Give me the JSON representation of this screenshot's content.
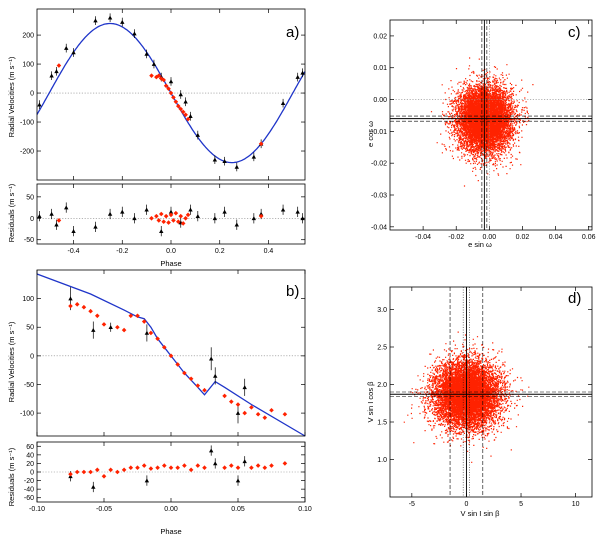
{
  "colors": {
    "model": "#1f35c9",
    "red": "#ff2200",
    "black": "#000000"
  },
  "chart_data": [
    {
      "type": "scatter",
      "panel": "a)",
      "xlabel": "Phase",
      "ylabel_top": "Radial Velocities (m s⁻¹)",
      "ylabel_bottom": "Residuals (m s⁻¹)",
      "xlim": [
        -0.55,
        0.55
      ],
      "ylim_top": [
        -300,
        290
      ],
      "ylim_bottom": [
        -60,
        80
      ],
      "xticks": [
        -0.4,
        -0.2,
        0.0,
        0.2,
        0.4
      ],
      "xtick_labels": [
        "-0.4",
        "-0.2",
        "0.0",
        "0.2",
        "0.4"
      ],
      "yticks_top": [
        -200,
        -100,
        0,
        100,
        200
      ],
      "ytick_labels_top": [
        "-200",
        "-100",
        "0",
        "100",
        "200"
      ],
      "yticks_bottom": [
        -50,
        0,
        50
      ],
      "ytick_labels_bottom": [
        "-50",
        "0",
        "50"
      ],
      "model_amplitude": 240,
      "black_series": [
        [
          -0.54,
          -40,
          15
        ],
        [
          -0.49,
          60,
          15
        ],
        [
          -0.47,
          75,
          15
        ],
        [
          -0.43,
          155,
          15
        ],
        [
          -0.4,
          140,
          15
        ],
        [
          -0.31,
          250,
          15
        ],
        [
          -0.25,
          260,
          15
        ],
        [
          -0.2,
          245,
          15
        ],
        [
          -0.15,
          205,
          15
        ],
        [
          -0.1,
          135,
          15
        ],
        [
          -0.07,
          100,
          15
        ],
        [
          -0.04,
          55,
          15
        ],
        [
          0.0,
          40,
          15
        ],
        [
          0.04,
          -5,
          15
        ],
        [
          0.06,
          -30,
          15
        ],
        [
          0.08,
          -80,
          15
        ],
        [
          0.11,
          -145,
          15
        ],
        [
          0.18,
          -230,
          15
        ],
        [
          0.22,
          -235,
          15
        ],
        [
          0.27,
          -255,
          15
        ],
        [
          0.34,
          -220,
          15
        ],
        [
          0.37,
          -175,
          15
        ],
        [
          0.46,
          -35,
          15
        ],
        [
          0.52,
          55,
          15
        ],
        [
          0.54,
          70,
          15
        ]
      ],
      "red_series": [
        [
          -0.46,
          95
        ],
        [
          -0.08,
          60
        ],
        [
          -0.06,
          55
        ],
        [
          -0.05,
          60
        ],
        [
          -0.04,
          50
        ],
        [
          -0.03,
          45
        ],
        [
          -0.02,
          25
        ],
        [
          -0.01,
          15
        ],
        [
          0.0,
          0
        ],
        [
          0.01,
          -15
        ],
        [
          0.02,
          -30
        ],
        [
          0.03,
          -45
        ],
        [
          0.04,
          -55
        ],
        [
          0.05,
          -65
        ],
        [
          0.06,
          -75
        ],
        [
          0.07,
          -90
        ],
        [
          0.37,
          -175
        ]
      ],
      "black_residuals": [
        [
          -0.54,
          5
        ],
        [
          -0.49,
          10
        ],
        [
          -0.47,
          -15
        ],
        [
          -0.43,
          25
        ],
        [
          -0.4,
          -30
        ],
        [
          -0.31,
          -20
        ],
        [
          -0.25,
          10
        ],
        [
          -0.2,
          15
        ],
        [
          -0.15,
          0
        ],
        [
          -0.1,
          20
        ],
        [
          -0.04,
          -30
        ],
        [
          0.0,
          15
        ],
        [
          0.04,
          -10
        ],
        [
          0.08,
          20
        ],
        [
          0.11,
          5
        ],
        [
          0.18,
          0
        ],
        [
          0.22,
          15
        ],
        [
          0.27,
          -15
        ],
        [
          0.34,
          0
        ],
        [
          0.37,
          10
        ],
        [
          0.46,
          20
        ],
        [
          0.52,
          15
        ],
        [
          0.54,
          0
        ]
      ],
      "red_residuals": [
        [
          -0.46,
          -5
        ],
        [
          -0.08,
          0
        ],
        [
          -0.06,
          5
        ],
        [
          -0.05,
          -5
        ],
        [
          -0.04,
          10
        ],
        [
          -0.03,
          -8
        ],
        [
          -0.02,
          5
        ],
        [
          -0.01,
          -10
        ],
        [
          0.0,
          8
        ],
        [
          0.01,
          -5
        ],
        [
          0.02,
          12
        ],
        [
          0.03,
          -8
        ],
        [
          0.04,
          5
        ],
        [
          0.05,
          -12
        ],
        [
          0.06,
          0
        ],
        [
          0.07,
          8
        ],
        [
          0.37,
          5
        ]
      ]
    },
    {
      "type": "scatter",
      "panel": "b)",
      "xlabel": "Phase",
      "ylabel_top": "Radial Velocities (m s⁻¹)",
      "ylabel_bottom": "Residuals (m s⁻¹)",
      "xlim": [
        -0.1,
        0.1
      ],
      "ylim_top": [
        -140,
        150
      ],
      "ylim_bottom": [
        -70,
        70
      ],
      "xticks": [
        -0.1,
        -0.05,
        0.0,
        0.05,
        0.1
      ],
      "xtick_labels": [
        "-0.10",
        "-0.05",
        "0.00",
        "0.05",
        "0.10"
      ],
      "yticks_top": [
        -100,
        -50,
        0,
        50,
        100
      ],
      "ytick_labels_top": [
        "-100",
        "-50",
        "0",
        "50",
        "100"
      ],
      "yticks_bottom": [
        -60,
        -40,
        -20,
        0,
        20,
        40,
        60
      ],
      "ytick_labels_bottom": [
        "-60",
        "-40",
        "-20",
        "0",
        "20",
        "40",
        "60"
      ],
      "model": [
        [
          -0.1,
          143
        ],
        [
          -0.06,
          108
        ],
        [
          -0.035,
          80
        ],
        [
          -0.025,
          68
        ],
        [
          -0.02,
          65
        ],
        [
          -0.015,
          50
        ],
        [
          -0.01,
          30
        ],
        [
          0.0,
          0
        ],
        [
          0.01,
          -30
        ],
        [
          0.02,
          -55
        ],
        [
          0.025,
          -68
        ],
        [
          0.033,
          -45
        ],
        [
          0.04,
          -55
        ],
        [
          0.06,
          -85
        ],
        [
          0.1,
          -140
        ]
      ],
      "black_series": [
        [
          -0.075,
          100,
          20
        ],
        [
          -0.058,
          45,
          15
        ],
        [
          -0.045,
          50,
          8
        ],
        [
          -0.018,
          40,
          15
        ],
        [
          0.03,
          -5,
          20
        ],
        [
          0.033,
          -35,
          15
        ],
        [
          0.05,
          -100,
          18
        ],
        [
          0.055,
          -55,
          15
        ]
      ],
      "red_series": [
        [
          -0.075,
          87
        ],
        [
          -0.07,
          90
        ],
        [
          -0.065,
          85
        ],
        [
          -0.06,
          78
        ],
        [
          -0.055,
          70
        ],
        [
          -0.05,
          55
        ],
        [
          -0.04,
          50
        ],
        [
          -0.035,
          45
        ],
        [
          -0.03,
          70
        ],
        [
          -0.025,
          70
        ],
        [
          -0.02,
          60
        ],
        [
          -0.015,
          40
        ],
        [
          -0.01,
          30
        ],
        [
          -0.005,
          15
        ],
        [
          0.0,
          0
        ],
        [
          0.005,
          -15
        ],
        [
          0.01,
          -30
        ],
        [
          0.015,
          -40
        ],
        [
          0.02,
          -52
        ],
        [
          0.025,
          -60
        ],
        [
          0.04,
          -70
        ],
        [
          0.045,
          -80
        ],
        [
          0.05,
          -85
        ],
        [
          0.055,
          -100
        ],
        [
          0.06,
          -90
        ],
        [
          0.065,
          -102
        ],
        [
          0.07,
          -108
        ],
        [
          0.075,
          -95
        ],
        [
          0.085,
          -102
        ]
      ],
      "black_residuals": [
        [
          -0.075,
          -10
        ],
        [
          -0.058,
          -35
        ],
        [
          -0.018,
          -20
        ],
        [
          0.03,
          50
        ],
        [
          0.033,
          20
        ],
        [
          0.05,
          -20
        ],
        [
          0.055,
          25
        ]
      ],
      "red_residuals": [
        [
          -0.075,
          -5
        ],
        [
          -0.07,
          0
        ],
        [
          -0.065,
          0
        ],
        [
          -0.06,
          0
        ],
        [
          -0.055,
          5
        ],
        [
          -0.05,
          -10
        ],
        [
          -0.045,
          5
        ],
        [
          -0.04,
          0
        ],
        [
          -0.035,
          5
        ],
        [
          -0.03,
          10
        ],
        [
          -0.025,
          10
        ],
        [
          -0.02,
          15
        ],
        [
          -0.015,
          8
        ],
        [
          -0.01,
          10
        ],
        [
          -0.005,
          15
        ],
        [
          0.0,
          10
        ],
        [
          0.005,
          10
        ],
        [
          0.01,
          15
        ],
        [
          0.015,
          5
        ],
        [
          0.02,
          15
        ],
        [
          0.025,
          10
        ],
        [
          0.04,
          10
        ],
        [
          0.045,
          15
        ],
        [
          0.05,
          10
        ],
        [
          0.06,
          10
        ],
        [
          0.065,
          15
        ],
        [
          0.07,
          10
        ],
        [
          0.075,
          15
        ],
        [
          0.085,
          20
        ]
      ]
    },
    {
      "type": "scatter",
      "panel": "c)",
      "xlabel": "e sin ω",
      "ylabel": "e cos ω",
      "xlim": [
        -0.06,
        0.062
      ],
      "ylim": [
        -0.041,
        0.025
      ],
      "xticks": [
        -0.04,
        -0.02,
        0.0,
        0.02,
        0.04,
        0.06
      ],
      "xtick_labels": [
        "-0.04",
        "-0.02",
        "0.00",
        "0.02",
        "0.04",
        "0.06"
      ],
      "yticks": [
        -0.04,
        -0.03,
        -0.02,
        -0.01,
        0.0,
        0.01,
        0.02
      ],
      "ytick_labels": [
        "-0.04",
        "-0.03",
        "-0.02",
        "-0.01",
        "0.00",
        "0.01",
        "0.02"
      ],
      "cloud_center": [
        -0.003,
        -0.006
      ],
      "cloud_sigma": [
        0.008,
        0.005
      ],
      "vline_solid": -0.003,
      "vlines_dashed": [
        -0.0045,
        -0.0015
      ],
      "hline_solid": -0.006,
      "hlines_dashed": [
        -0.0068,
        -0.0052
      ],
      "dotted_zero": [
        0.0,
        0.0
      ]
    },
    {
      "type": "scatter",
      "panel": "d)",
      "xlabel": "V sin I  sin β",
      "ylabel": "V sin I  cos β",
      "xlim": [
        -7,
        11.5
      ],
      "ylim": [
        0.5,
        3.3
      ],
      "xticks": [
        -5,
        0,
        5,
        10
      ],
      "xtick_labels": [
        "-5",
        "0",
        "5",
        "10"
      ],
      "yticks": [
        1.0,
        1.5,
        2.0,
        2.5,
        3.0
      ],
      "ytick_labels": [
        "1.0",
        "1.5",
        "2.0",
        "2.5",
        "3.0"
      ],
      "cloud_center": [
        0.0,
        1.87
      ],
      "cloud_sigma": [
        1.5,
        0.22
      ],
      "vline_solid": 0.0,
      "vlines_dashed": [
        -1.5,
        1.5
      ],
      "vlines_dotted": [
        -0.3,
        0.3
      ],
      "hline_solid": 1.87,
      "hlines_dashed": [
        1.84,
        1.9
      ],
      "dotted_zero": [
        0.0,
        null
      ]
    }
  ]
}
